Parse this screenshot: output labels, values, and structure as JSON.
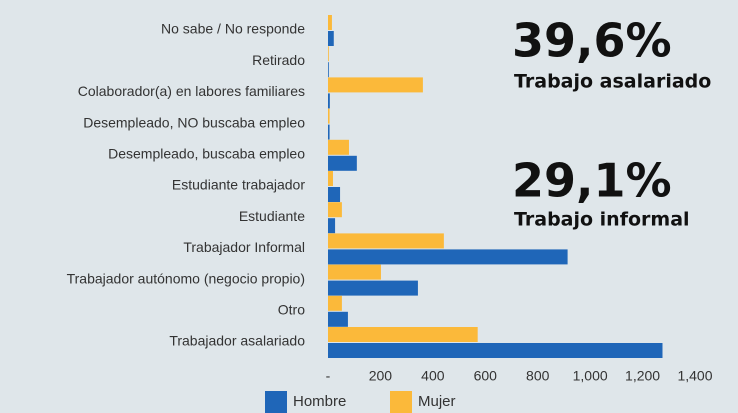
{
  "chart_data": {
    "type": "barh",
    "categories": [
      "No sabe / No responde",
      "Retirado",
      "Colaborador(a) en labores familiares",
      "Desempleado, NO buscaba empleo",
      "Desempleado, buscaba empleo",
      "Estudiante trabajador",
      "Estudiante",
      "Trabajador Informal",
      "Trabajador autónomo (negocio propio)",
      "Otro",
      "Trabajador asalariado"
    ],
    "series": [
      {
        "name": "Hombre",
        "color": "#1f66b8",
        "values": [
          22,
          3,
          7,
          6,
          110,
          46,
          27,
          914,
          343,
          76,
          1276
        ]
      },
      {
        "name": "Mujer",
        "color": "#fbb93a",
        "values": [
          15,
          3,
          362,
          6,
          80,
          19,
          53,
          442,
          202,
          53,
          571
        ]
      }
    ],
    "xlim": [
      0,
      1400
    ],
    "xticks": [
      {
        "value": 0,
        "label": "-"
      },
      200,
      400,
      600,
      800,
      {
        "value": 1000,
        "label": "1,000"
      },
      {
        "value": 1200,
        "label": "1,200"
      },
      {
        "value": 1400,
        "label": "1,400"
      }
    ],
    "grid": false,
    "legend": "bottom",
    "annotations": [
      "39,6%",
      "Trabajo asalariado",
      "29,1%",
      "Trabajo informal"
    ]
  }
}
